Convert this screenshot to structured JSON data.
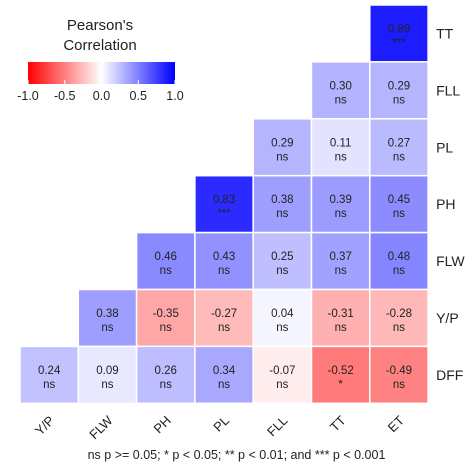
{
  "chart_data": {
    "type": "heatmap",
    "title": "",
    "xlabel": "",
    "ylabel": "",
    "columns": [
      "Y/P",
      "FLW",
      "PH",
      "PL",
      "FLL",
      "TT",
      "ET"
    ],
    "rows": [
      "TT",
      "FLL",
      "PL",
      "PH",
      "FLW",
      "Y/P",
      "DFF"
    ],
    "cells": [
      {
        "row": "TT",
        "col": "ET",
        "value": "0.89",
        "sig": "***"
      },
      {
        "row": "FLL",
        "col": "TT",
        "value": "0.30",
        "sig": "ns"
      },
      {
        "row": "FLL",
        "col": "ET",
        "value": "0.29",
        "sig": "ns"
      },
      {
        "row": "PL",
        "col": "FLL",
        "value": "0.29",
        "sig": "ns"
      },
      {
        "row": "PL",
        "col": "TT",
        "value": "0.11",
        "sig": "ns"
      },
      {
        "row": "PL",
        "col": "ET",
        "value": "0.27",
        "sig": "ns"
      },
      {
        "row": "PH",
        "col": "PL",
        "value": "0.83",
        "sig": "***"
      },
      {
        "row": "PH",
        "col": "FLL",
        "value": "0.38",
        "sig": "ns"
      },
      {
        "row": "PH",
        "col": "TT",
        "value": "0.39",
        "sig": "ns"
      },
      {
        "row": "PH",
        "col": "ET",
        "value": "0.45",
        "sig": "ns"
      },
      {
        "row": "FLW",
        "col": "PH",
        "value": "0.46",
        "sig": "ns"
      },
      {
        "row": "FLW",
        "col": "PL",
        "value": "0.43",
        "sig": "ns"
      },
      {
        "row": "FLW",
        "col": "FLL",
        "value": "0.25",
        "sig": "ns"
      },
      {
        "row": "FLW",
        "col": "TT",
        "value": "0.37",
        "sig": "ns"
      },
      {
        "row": "FLW",
        "col": "ET",
        "value": "0.48",
        "sig": "ns"
      },
      {
        "row": "Y/P",
        "col": "FLW",
        "value": "0.38",
        "sig": "ns"
      },
      {
        "row": "Y/P",
        "col": "PH",
        "value": "-0.35",
        "sig": "ns"
      },
      {
        "row": "Y/P",
        "col": "PL",
        "value": "-0.27",
        "sig": "ns"
      },
      {
        "row": "Y/P",
        "col": "FLL",
        "value": "0.04",
        "sig": "ns"
      },
      {
        "row": "Y/P",
        "col": "TT",
        "value": "-0.31",
        "sig": "ns"
      },
      {
        "row": "Y/P",
        "col": "ET",
        "value": "-0.28",
        "sig": "ns"
      },
      {
        "row": "DFF",
        "col": "Y/P",
        "value": "0.24",
        "sig": "ns"
      },
      {
        "row": "DFF",
        "col": "FLW",
        "value": "0.09",
        "sig": "ns"
      },
      {
        "row": "DFF",
        "col": "PH",
        "value": "0.26",
        "sig": "ns"
      },
      {
        "row": "DFF",
        "col": "PL",
        "value": "0.34",
        "sig": "ns"
      },
      {
        "row": "DFF",
        "col": "FLL",
        "value": "-0.07",
        "sig": "ns"
      },
      {
        "row": "DFF",
        "col": "TT",
        "value": "-0.52",
        "sig": "*"
      },
      {
        "row": "DFF",
        "col": "ET",
        "value": "-0.49",
        "sig": "ns"
      }
    ],
    "legend": {
      "title_line1": "Pearson's",
      "title_line2": "Correlation",
      "ticks": [
        "-1.0",
        "-0.5",
        "0.0",
        "0.5",
        "1.0"
      ],
      "range": [
        -1,
        1
      ],
      "placement": "top-left",
      "colors": {
        "low": "#ff0000",
        "mid": "#ffffff",
        "high": "#0000ff"
      }
    },
    "caption": "ns p >= 0.05; * p < 0.05; ** p < 0.01; and *** p < 0.001"
  }
}
